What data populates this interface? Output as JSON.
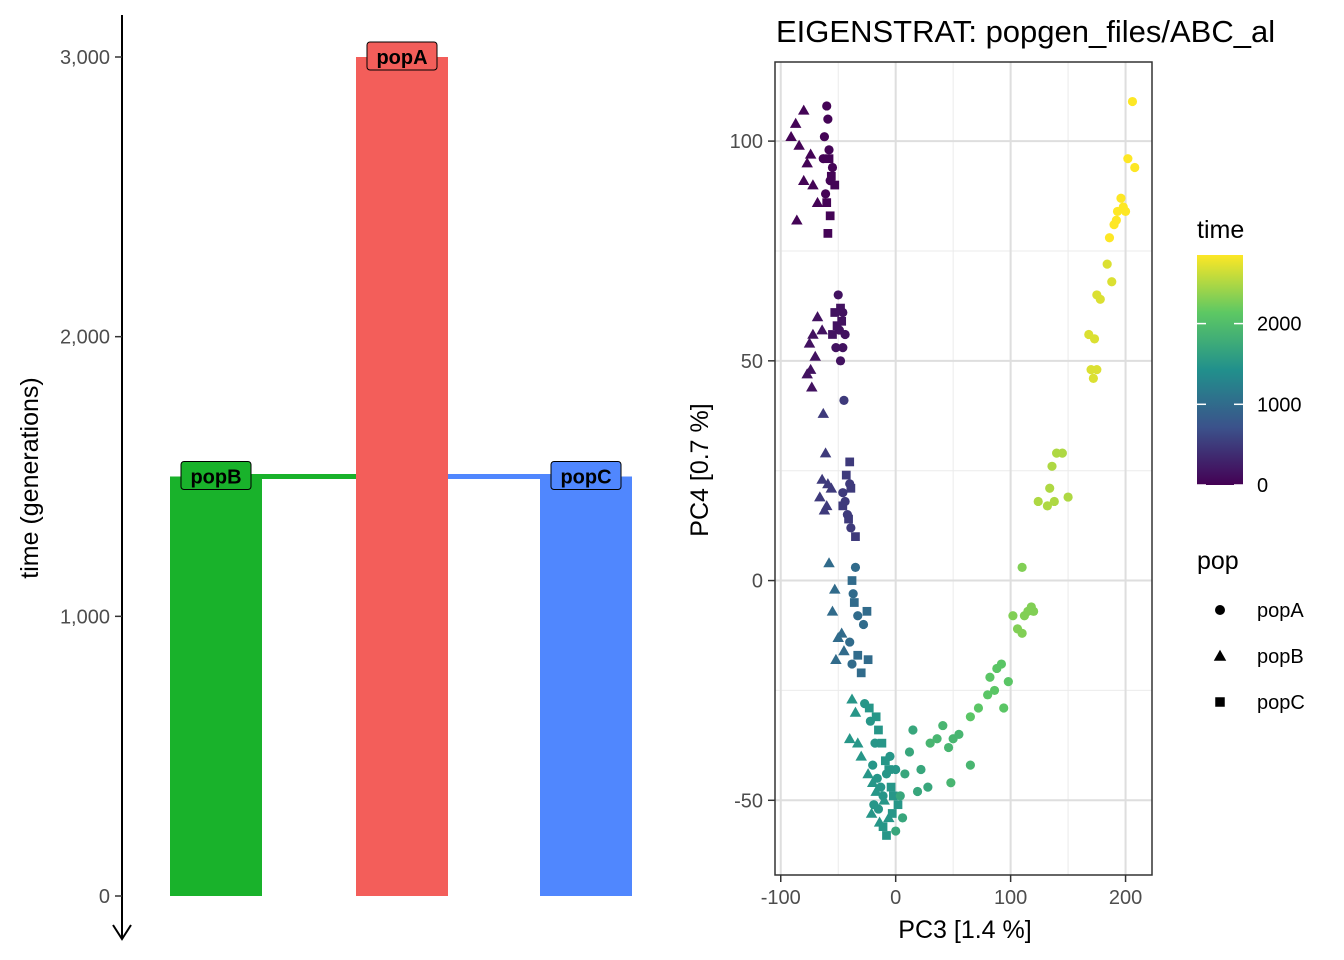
{
  "chart_data": [
    {
      "type": "bar",
      "subtype": "population-tree",
      "ylabel": "time (generations)",
      "y_tick_labels": [
        "0",
        "1,000",
        "2,000",
        "3,000"
      ],
      "y_ticks": [
        0,
        1000,
        2000,
        3000
      ],
      "ylim": [
        0,
        3100
      ],
      "y_reversed_arrow": true,
      "populations": [
        {
          "name": "popB",
          "start": 1500,
          "end": 0,
          "color": "#19b22b"
        },
        {
          "name": "popA",
          "start": 3000,
          "end": 0,
          "color": "#f35e5a"
        },
        {
          "name": "popC",
          "start": 1500,
          "end": 0,
          "color": "#5087fe"
        }
      ],
      "splits": [
        {
          "from": "popA",
          "to": "popB",
          "time": 1500
        },
        {
          "from": "popA",
          "to": "popC",
          "time": 1500
        }
      ]
    },
    {
      "type": "scatter",
      "title": "EIGENSTRAT: popgen_files/ABC_al",
      "xlabel": "PC3 [1.4 %]",
      "ylabel": "PC4 [0.7 %]",
      "xlim": [
        -105,
        223
      ],
      "ylim": [
        -67,
        118
      ],
      "x_ticks": [
        -100,
        0,
        100,
        200
      ],
      "x_tick_labels": [
        "-100",
        "0",
        "100",
        "200"
      ],
      "y_ticks": [
        -50,
        0,
        50,
        100
      ],
      "y_tick_labels": [
        "-50",
        "0",
        "50",
        "100"
      ],
      "grid": true,
      "legend_position": "right",
      "color_legend": {
        "title": "time",
        "min": 0,
        "max": 2850,
        "ticks": [
          0,
          1000,
          2000
        ],
        "tick_labels": [
          "0",
          "1000",
          "2000"
        ],
        "palette": [
          "#440154",
          "#3b528b",
          "#21908c",
          "#5dc863",
          "#fde725"
        ]
      },
      "shape_legend": {
        "title": "pop",
        "items": [
          {
            "label": "popA",
            "shape": "circle"
          },
          {
            "label": "popB",
            "shape": "triangle"
          },
          {
            "label": "popC",
            "shape": "square"
          }
        ]
      },
      "points": [
        [
          -60,
          108,
          30,
          "circle"
        ],
        [
          -59,
          105,
          30,
          "circle"
        ],
        [
          -62,
          101,
          30,
          "circle"
        ],
        [
          -58,
          98,
          30,
          "circle"
        ],
        [
          -55,
          94,
          30,
          "circle"
        ],
        [
          -63,
          96,
          30,
          "circle"
        ],
        [
          -57,
          91,
          30,
          "circle"
        ],
        [
          -61,
          88,
          30,
          "circle"
        ],
        [
          -80,
          107,
          30,
          "triangle"
        ],
        [
          -87,
          104,
          30,
          "triangle"
        ],
        [
          -91,
          101,
          30,
          "triangle"
        ],
        [
          -84,
          99,
          30,
          "triangle"
        ],
        [
          -77,
          95,
          30,
          "triangle"
        ],
        [
          -80,
          91,
          30,
          "triangle"
        ],
        [
          -72,
          90,
          30,
          "triangle"
        ],
        [
          -86,
          82,
          30,
          "triangle"
        ],
        [
          -68,
          86,
          30,
          "triangle"
        ],
        [
          -74,
          97,
          30,
          "triangle"
        ],
        [
          -58,
          96,
          30,
          "square"
        ],
        [
          -56,
          92,
          30,
          "square"
        ],
        [
          -60,
          86,
          30,
          "square"
        ],
        [
          -57,
          83,
          30,
          "square"
        ],
        [
          -59,
          79,
          30,
          "square"
        ],
        [
          -53,
          90,
          30,
          "square"
        ],
        [
          -50,
          65,
          150,
          "circle"
        ],
        [
          -46,
          61,
          150,
          "circle"
        ],
        [
          -49,
          57,
          150,
          "circle"
        ],
        [
          -44,
          56,
          150,
          "circle"
        ],
        [
          -52,
          53,
          150,
          "circle"
        ],
        [
          -48,
          50,
          150,
          "circle"
        ],
        [
          -46,
          53,
          150,
          "circle"
        ],
        [
          -68,
          60,
          150,
          "triangle"
        ],
        [
          -72,
          56,
          150,
          "triangle"
        ],
        [
          -75,
          54,
          150,
          "triangle"
        ],
        [
          -70,
          51,
          150,
          "triangle"
        ],
        [
          -74,
          48,
          150,
          "triangle"
        ],
        [
          -77,
          47,
          150,
          "triangle"
        ],
        [
          -73,
          44,
          150,
          "triangle"
        ],
        [
          -64,
          57,
          150,
          "triangle"
        ],
        [
          -53,
          61,
          150,
          "square"
        ],
        [
          -48,
          62,
          150,
          "square"
        ],
        [
          -51,
          58,
          150,
          "square"
        ],
        [
          -55,
          56,
          150,
          "square"
        ],
        [
          -47,
          59,
          150,
          "square"
        ],
        [
          -45,
          41,
          500,
          "circle"
        ],
        [
          -40,
          22,
          500,
          "circle"
        ],
        [
          -44,
          18,
          500,
          "circle"
        ],
        [
          -42,
          15,
          500,
          "circle"
        ],
        [
          -39,
          12,
          500,
          "circle"
        ],
        [
          -46,
          20,
          500,
          "circle"
        ],
        [
          -63,
          38,
          500,
          "triangle"
        ],
        [
          -61,
          29,
          500,
          "triangle"
        ],
        [
          -64,
          23,
          500,
          "triangle"
        ],
        [
          -59,
          22,
          500,
          "triangle"
        ],
        [
          -66,
          19,
          500,
          "triangle"
        ],
        [
          -60,
          17,
          500,
          "triangle"
        ],
        [
          -62,
          16,
          500,
          "triangle"
        ],
        [
          -56,
          21,
          500,
          "triangle"
        ],
        [
          -40,
          27,
          500,
          "square"
        ],
        [
          -43,
          24,
          500,
          "square"
        ],
        [
          -39,
          21,
          500,
          "square"
        ],
        [
          -46,
          17,
          500,
          "square"
        ],
        [
          -41,
          14,
          500,
          "square"
        ],
        [
          -35,
          10,
          500,
          "square"
        ],
        [
          -35,
          3,
          1000,
          "circle"
        ],
        [
          -37,
          -3,
          1000,
          "circle"
        ],
        [
          -33,
          -8,
          1000,
          "circle"
        ],
        [
          -40,
          -14,
          1000,
          "circle"
        ],
        [
          -38,
          -19,
          1000,
          "circle"
        ],
        [
          -28,
          -10,
          1000,
          "circle"
        ],
        [
          -58,
          4,
          1000,
          "triangle"
        ],
        [
          -53,
          -2,
          1000,
          "triangle"
        ],
        [
          -55,
          -7,
          1000,
          "triangle"
        ],
        [
          -50,
          -13,
          1000,
          "triangle"
        ],
        [
          -52,
          -18,
          1000,
          "triangle"
        ],
        [
          -47,
          -12,
          1000,
          "triangle"
        ],
        [
          -45,
          -16,
          1000,
          "triangle"
        ],
        [
          -38,
          0,
          1000,
          "square"
        ],
        [
          -36,
          -5,
          1000,
          "square"
        ],
        [
          -25,
          -7,
          1000,
          "square"
        ],
        [
          -33,
          -17,
          1000,
          "square"
        ],
        [
          -30,
          -21,
          1000,
          "square"
        ],
        [
          -24,
          -18,
          1000,
          "square"
        ],
        [
          -27,
          -28,
          1500,
          "circle"
        ],
        [
          -22,
          -32,
          1500,
          "circle"
        ],
        [
          -18,
          -37,
          1500,
          "circle"
        ],
        [
          -20,
          -42,
          1500,
          "circle"
        ],
        [
          -16,
          -45,
          1500,
          "circle"
        ],
        [
          -13,
          -47,
          1500,
          "circle"
        ],
        [
          -19,
          -51,
          1500,
          "circle"
        ],
        [
          -15,
          -52,
          1500,
          "circle"
        ],
        [
          -11,
          -49,
          1500,
          "circle"
        ],
        [
          -8,
          -44,
          1500,
          "circle"
        ],
        [
          -5,
          -40,
          1500,
          "circle"
        ],
        [
          0,
          -43,
          1500,
          "circle"
        ],
        [
          -38,
          -27,
          1500,
          "triangle"
        ],
        [
          -35,
          -30,
          1500,
          "triangle"
        ],
        [
          -40,
          -36,
          1500,
          "triangle"
        ],
        [
          -33,
          -37,
          1500,
          "triangle"
        ],
        [
          -30,
          -40,
          1500,
          "triangle"
        ],
        [
          -24,
          -44,
          1500,
          "triangle"
        ],
        [
          -20,
          -46,
          1500,
          "triangle"
        ],
        [
          -17,
          -48,
          1500,
          "triangle"
        ],
        [
          -21,
          -53,
          1500,
          "triangle"
        ],
        [
          -14,
          -55,
          1500,
          "triangle"
        ],
        [
          -10,
          -50,
          1500,
          "triangle"
        ],
        [
          -6,
          -54,
          1500,
          "triangle"
        ],
        [
          -23,
          -29,
          1500,
          "square"
        ],
        [
          -17,
          -31,
          1500,
          "square"
        ],
        [
          -15,
          -34,
          1500,
          "square"
        ],
        [
          -12,
          -37,
          1500,
          "square"
        ],
        [
          -9,
          -41,
          1500,
          "square"
        ],
        [
          -6,
          -43,
          1500,
          "square"
        ],
        [
          -4,
          -47,
          1500,
          "square"
        ],
        [
          -2,
          -49,
          1500,
          "square"
        ],
        [
          -3,
          -53,
          1500,
          "square"
        ],
        [
          -11,
          -56,
          1500,
          "square"
        ],
        [
          2,
          -51,
          1500,
          "square"
        ],
        [
          -8,
          -58,
          1500,
          "square"
        ],
        [
          0,
          -57,
          1700,
          "circle"
        ],
        [
          6,
          -54,
          1700,
          "circle"
        ],
        [
          4,
          -49,
          1700,
          "circle"
        ],
        [
          8,
          -44,
          1700,
          "circle"
        ],
        [
          12,
          -39,
          1700,
          "circle"
        ],
        [
          15,
          -34,
          1700,
          "circle"
        ],
        [
          22,
          -43,
          1700,
          "circle"
        ],
        [
          28,
          -47,
          1700,
          "circle"
        ],
        [
          19,
          -48,
          1700,
          "circle"
        ],
        [
          30,
          -37,
          1900,
          "circle"
        ],
        [
          36,
          -36,
          1900,
          "circle"
        ],
        [
          41,
          -33,
          1900,
          "circle"
        ],
        [
          46,
          -38,
          1900,
          "circle"
        ],
        [
          50,
          -36,
          1900,
          "circle"
        ],
        [
          55,
          -35,
          1900,
          "circle"
        ],
        [
          65,
          -42,
          1900,
          "circle"
        ],
        [
          48,
          -46,
          1900,
          "circle"
        ],
        [
          65,
          -31,
          2100,
          "circle"
        ],
        [
          72,
          -29,
          2100,
          "circle"
        ],
        [
          80,
          -26,
          2100,
          "circle"
        ],
        [
          82,
          -22,
          2100,
          "circle"
        ],
        [
          86,
          -25,
          2100,
          "circle"
        ],
        [
          88,
          -20,
          2100,
          "circle"
        ],
        [
          92,
          -19,
          2100,
          "circle"
        ],
        [
          98,
          -23,
          2100,
          "circle"
        ],
        [
          94,
          -29,
          2100,
          "circle"
        ],
        [
          102,
          -8,
          2300,
          "circle"
        ],
        [
          106,
          -11,
          2300,
          "circle"
        ],
        [
          110,
          -12,
          2300,
          "circle"
        ],
        [
          112,
          -8,
          2300,
          "circle"
        ],
        [
          115,
          -7,
          2300,
          "circle"
        ],
        [
          120,
          -7,
          2300,
          "circle"
        ],
        [
          118,
          -6,
          2300,
          "circle"
        ],
        [
          110,
          3,
          2300,
          "circle"
        ],
        [
          124,
          18,
          2500,
          "circle"
        ],
        [
          132,
          17,
          2500,
          "circle"
        ],
        [
          134,
          21,
          2500,
          "circle"
        ],
        [
          138,
          18,
          2500,
          "circle"
        ],
        [
          140,
          29,
          2500,
          "circle"
        ],
        [
          145,
          29,
          2500,
          "circle"
        ],
        [
          150,
          19,
          2500,
          "circle"
        ],
        [
          136,
          26,
          2500,
          "circle"
        ],
        [
          168,
          56,
          2700,
          "circle"
        ],
        [
          170,
          48,
          2700,
          "circle"
        ],
        [
          172,
          46,
          2700,
          "circle"
        ],
        [
          175,
          48,
          2700,
          "circle"
        ],
        [
          173,
          55,
          2700,
          "circle"
        ],
        [
          175,
          65,
          2700,
          "circle"
        ],
        [
          178,
          64,
          2700,
          "circle"
        ],
        [
          184,
          72,
          2700,
          "circle"
        ],
        [
          188,
          68,
          2700,
          "circle"
        ],
        [
          186,
          78,
          2850,
          "circle"
        ],
        [
          190,
          81,
          2850,
          "circle"
        ],
        [
          193,
          84,
          2850,
          "circle"
        ],
        [
          198,
          85,
          2850,
          "circle"
        ],
        [
          200,
          84,
          2850,
          "circle"
        ],
        [
          196,
          87,
          2850,
          "circle"
        ],
        [
          202,
          96,
          2850,
          "circle"
        ],
        [
          208,
          94,
          2850,
          "circle"
        ],
        [
          206,
          109,
          2850,
          "circle"
        ],
        [
          192,
          82,
          2850,
          "circle"
        ]
      ]
    }
  ]
}
